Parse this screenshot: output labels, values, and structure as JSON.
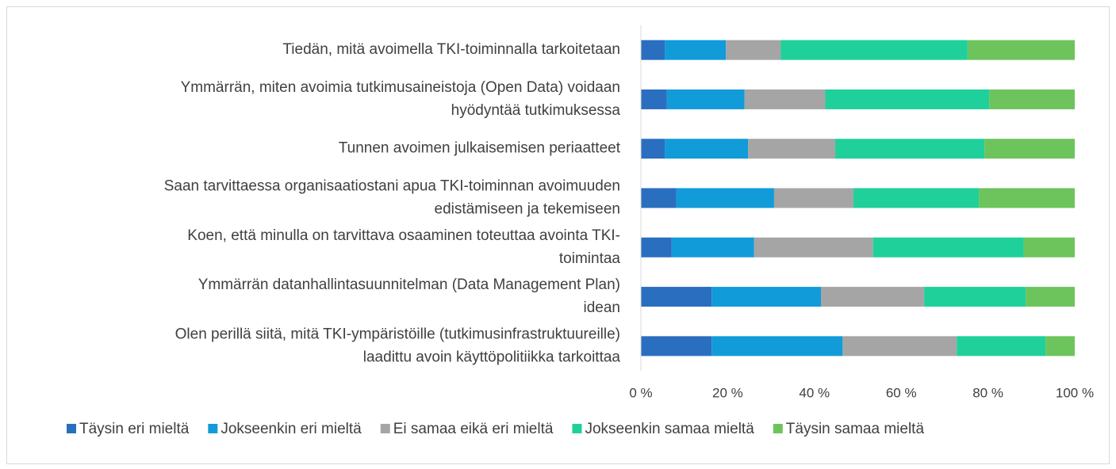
{
  "chart_data": {
    "type": "stacked_bar_horizontal",
    "categories": [
      [
        "Tiedän, mitä avoimella TKI-toiminnalla tarkoitetaan"
      ],
      [
        "Ymmärrän, miten avoimia tutkimusaineistoja (Open Data) voidaan",
        "hyödyntää tutkimuksessa"
      ],
      [
        "Tunnen avoimen julkaisemisen periaatteet"
      ],
      [
        "Saan tarvittaessa organisaatiostani apua TKI-toiminnan avoimuuden",
        "edistämiseen ja tekemiseen"
      ],
      [
        "Koen, että minulla on tarvittava osaaminen toteuttaa avointa TKI-",
        "toimintaa"
      ],
      [
        "Ymmärrän datanhallintasuunnitelman (Data Management Plan)",
        "idean"
      ],
      [
        "Olen perillä siitä, mitä TKI-ympäristöille (tutkimusinfrastruktuureille)",
        "laadittu avoin käyttöpolitiikka tarkoittaa"
      ]
    ],
    "series": [
      {
        "name": "Täysin eri mieltä",
        "color": "#2a6ebf",
        "values": [
          5.5,
          6.0,
          5.5,
          8.2,
          7.1,
          16.3,
          16.3
        ]
      },
      {
        "name": "Jokseenkin eri mieltä",
        "color": "#119bd8",
        "values": [
          14.1,
          17.9,
          19.2,
          22.5,
          19.0,
          25.2,
          30.2
        ]
      },
      {
        "name": "Ei samaa eikä eri mieltä",
        "color": "#a5a5a5",
        "values": [
          12.6,
          18.6,
          20.1,
          18.3,
          27.4,
          23.8,
          26.3
        ]
      },
      {
        "name": "Jokseenkin samaa mieltä",
        "color": "#1fd09b",
        "values": [
          43.1,
          37.8,
          34.4,
          28.9,
          34.7,
          23.4,
          20.5
        ]
      },
      {
        "name": "Täysin samaa mieltä",
        "color": "#6dc45c",
        "values": [
          24.7,
          19.7,
          20.8,
          22.1,
          11.8,
          11.3,
          6.7
        ]
      }
    ],
    "xlim": [
      0,
      100
    ],
    "xticks": [
      {
        "value": 0,
        "label": "0 %"
      },
      {
        "value": 20,
        "label": "20 %"
      },
      {
        "value": 40,
        "label": "40 %"
      },
      {
        "value": 60,
        "label": "60 %"
      },
      {
        "value": 80,
        "label": "80 %"
      },
      {
        "value": 100,
        "label": "100 %"
      }
    ],
    "legend": "bottom"
  }
}
